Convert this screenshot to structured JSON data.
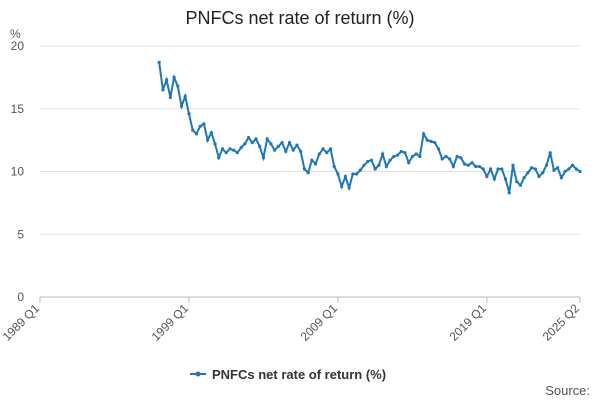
{
  "chart_data": {
    "type": "line",
    "title": "PNFCs net rate of return (%)",
    "y_label": "%",
    "source": "Source:",
    "categories": [
      "1989 Q1",
      null,
      null,
      null,
      null,
      null,
      null,
      null,
      null,
      null,
      null,
      null,
      null,
      null,
      null,
      null,
      null,
      null,
      null,
      null,
      null,
      null,
      null,
      null,
      null,
      null,
      null,
      null,
      null,
      null,
      null,
      null,
      null,
      null,
      null,
      null,
      null,
      null,
      null,
      null,
      "1999 Q1",
      null,
      null,
      null,
      null,
      null,
      null,
      null,
      null,
      null,
      null,
      null,
      null,
      null,
      null,
      null,
      null,
      null,
      null,
      null,
      null,
      null,
      null,
      null,
      null,
      null,
      null,
      null,
      null,
      null,
      null,
      null,
      null,
      null,
      null,
      null,
      null,
      null,
      null,
      null,
      "2009 Q1",
      null,
      null,
      null,
      null,
      null,
      null,
      null,
      null,
      null,
      null,
      null,
      null,
      null,
      null,
      null,
      null,
      null,
      null,
      null,
      null,
      null,
      null,
      null,
      null,
      null,
      null,
      null,
      null,
      null,
      null,
      null,
      null,
      null,
      null,
      null,
      null,
      null,
      null,
      null,
      "2019 Q1",
      null,
      null,
      null,
      null,
      null,
      null,
      null,
      null,
      null,
      null,
      null,
      null,
      null,
      null,
      null,
      null,
      null,
      null,
      null,
      null,
      null,
      null,
      null,
      null,
      "2025 Q2"
    ],
    "series": [
      {
        "name": "PNFCs net rate of return (%)",
        "color": "#1f78b4",
        "values": [
          null,
          null,
          null,
          null,
          null,
          null,
          null,
          null,
          null,
          null,
          null,
          null,
          null,
          null,
          null,
          null,
          null,
          null,
          null,
          null,
          null,
          null,
          null,
          null,
          null,
          null,
          null,
          null,
          null,
          null,
          null,
          null,
          18.7,
          16.5,
          17.3,
          15.9,
          17.5,
          16.8,
          15.2,
          16.0,
          14.6,
          13.3,
          13.0,
          13.6,
          13.8,
          12.5,
          13.1,
          12.2,
          11.1,
          11.8,
          11.5,
          11.8,
          11.7,
          11.5,
          11.9,
          12.2,
          12.7,
          12.3,
          12.6,
          12.0,
          11.1,
          12.6,
          12.2,
          11.7,
          12.0,
          12.3,
          11.6,
          12.3,
          11.7,
          12.1,
          11.6,
          10.2,
          9.9,
          10.9,
          10.6,
          11.4,
          11.8,
          11.5,
          11.8,
          10.4,
          9.8,
          8.8,
          9.6,
          8.7,
          9.8,
          9.8,
          10.1,
          10.5,
          10.8,
          10.9,
          10.2,
          10.5,
          11.4,
          10.4,
          10.9,
          11.2,
          11.3,
          11.6,
          11.5,
          10.7,
          11.2,
          11.4,
          11.2,
          13.0,
          12.5,
          12.4,
          12.3,
          11.8,
          11.0,
          11.2,
          11.0,
          10.4,
          11.2,
          11.1,
          10.6,
          10.5,
          10.7,
          10.4,
          10.4,
          10.2,
          9.6,
          10.2,
          9.4,
          10.2,
          10.2,
          9.4,
          8.3,
          10.5,
          9.2,
          8.9,
          9.5,
          9.9,
          10.3,
          10.2,
          9.6,
          9.9,
          10.5,
          11.5,
          10.1,
          10.3,
          9.5,
          10.0,
          10.2,
          10.5,
          10.2,
          10.0
        ]
      }
    ],
    "ylim": [
      0,
      20
    ],
    "yticks": [
      0,
      5,
      10,
      15,
      20
    ],
    "grid": true,
    "legend": "bottom"
  }
}
